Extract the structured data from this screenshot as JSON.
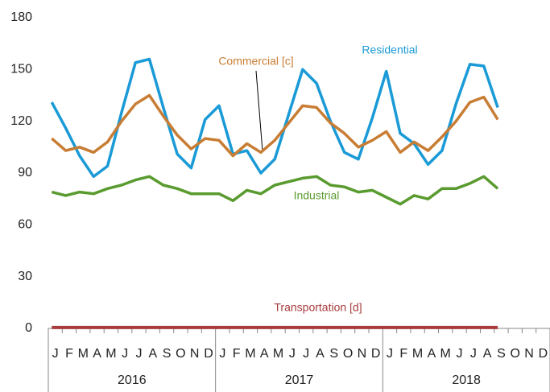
{
  "chart_data": {
    "type": "line",
    "categories": [
      "J",
      "F",
      "M",
      "A",
      "M",
      "J",
      "J",
      "A",
      "S",
      "O",
      "N",
      "D",
      "J",
      "F",
      "M",
      "A",
      "M",
      "J",
      "J",
      "A",
      "S",
      "O",
      "N",
      "D",
      "J",
      "F",
      "M",
      "A",
      "M",
      "J",
      "J",
      "A",
      "S",
      "O",
      "N",
      "D"
    ],
    "groups": [
      "2016",
      "2017",
      "2018"
    ],
    "ylim": [
      0,
      180
    ],
    "yticks": [
      0,
      30,
      60,
      90,
      120,
      150,
      180
    ],
    "grid": false,
    "series": [
      {
        "name": "Residential",
        "color": "#1a9ad6",
        "values": [
          131,
          116,
          100,
          88,
          94,
          125,
          154,
          156,
          128,
          101,
          93,
          121,
          129,
          101,
          103,
          90,
          98,
          124,
          150,
          142,
          120,
          102,
          98,
          122,
          149,
          113,
          107,
          95,
          103,
          130,
          153,
          152,
          128,
          null,
          null,
          null
        ]
      },
      {
        "name": "Commercial [c]",
        "color": "#c87d34",
        "values": [
          110,
          103,
          105,
          102,
          108,
          120,
          130,
          135,
          123,
          112,
          104,
          110,
          109,
          100,
          107,
          102,
          109,
          119,
          129,
          128,
          119,
          113,
          105,
          109,
          114,
          102,
          108,
          103,
          111,
          120,
          131,
          134,
          121,
          null,
          null,
          null
        ]
      },
      {
        "name": "Industrial",
        "color": "#5a9b2f",
        "values": [
          79,
          77,
          79,
          78,
          81,
          83,
          86,
          88,
          83,
          81,
          78,
          78,
          78,
          74,
          80,
          78,
          83,
          85,
          87,
          88,
          83,
          82,
          79,
          80,
          76,
          72,
          77,
          75,
          81,
          81,
          84,
          88,
          81,
          null,
          null,
          null
        ]
      },
      {
        "name": "Transportation [d]",
        "color": "#a83c3c",
        "values": [
          0.5,
          0.5,
          0.5,
          0.5,
          0.5,
          0.5,
          0.5,
          0.5,
          0.5,
          0.5,
          0.5,
          0.5,
          0.5,
          0.5,
          0.5,
          0.5,
          0.5,
          0.5,
          0.5,
          0.5,
          0.5,
          0.5,
          0.5,
          0.5,
          0.5,
          0.5,
          0.5,
          0.5,
          0.5,
          0.5,
          0.5,
          0.5,
          0.5,
          null,
          null,
          null
        ]
      }
    ]
  }
}
